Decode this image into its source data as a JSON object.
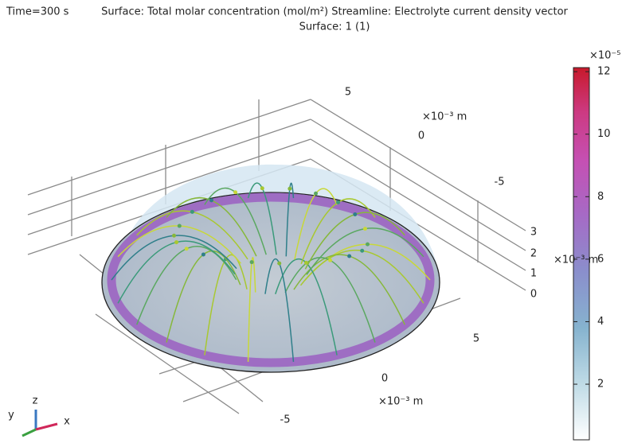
{
  "header": {
    "time": "Time=300 s",
    "title": "Surface: Total molar concentration (mol/m²)  Streamline: Electrolyte current density vector",
    "subtitle": "Surface: 1 (1)"
  },
  "colorbar": {
    "exponent": "×10⁻⁵",
    "range": [
      0.22,
      12.13
    ],
    "ticks": [
      2,
      4,
      6,
      8,
      10,
      12
    ]
  },
  "axes": {
    "y": {
      "ticks": [
        5,
        0,
        -5
      ],
      "unit": "×10⁻³ m"
    },
    "z": {
      "ticks": [
        0,
        1,
        2,
        3
      ],
      "unit": "×10⁻³ m"
    },
    "x": {
      "ticks": [
        5,
        0,
        -5
      ],
      "unit": "×10⁻³ m"
    }
  },
  "triad": {
    "x": "x",
    "y": "y",
    "z": "z"
  }
}
